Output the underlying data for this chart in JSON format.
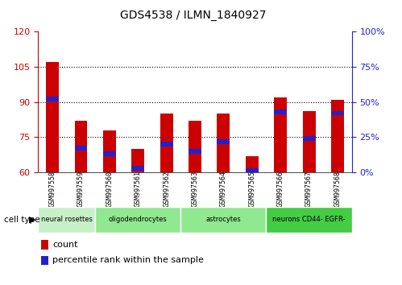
{
  "title": "GDS4538 / ILMN_1840927",
  "samples": [
    "GSM997558",
    "GSM997559",
    "GSM997560",
    "GSM997561",
    "GSM997562",
    "GSM997563",
    "GSM997564",
    "GSM997565",
    "GSM997566",
    "GSM997567",
    "GSM997568"
  ],
  "count_values": [
    107,
    82,
    78,
    70,
    85,
    82,
    85,
    67,
    92,
    86,
    91
  ],
  "percentile_values": [
    52,
    17,
    13,
    3,
    20,
    15,
    22,
    1,
    43,
    24,
    42
  ],
  "ylim_left": [
    60,
    120
  ],
  "ylim_right": [
    0,
    100
  ],
  "yticks_left": [
    60,
    75,
    90,
    105,
    120
  ],
  "yticks_right": [
    0,
    25,
    50,
    75,
    100
  ],
  "cell_type_defs": [
    {
      "label": "neural rosettes",
      "start": 0,
      "end": 2,
      "color": "#c8f0c8"
    },
    {
      "label": "oligodendrocytes",
      "start": 2,
      "end": 5,
      "color": "#90e890"
    },
    {
      "label": "astrocytes",
      "start": 5,
      "end": 8,
      "color": "#90e890"
    },
    {
      "label": "neurons CD44- EGFR-",
      "start": 8,
      "end": 11,
      "color": "#44cc44"
    }
  ],
  "bar_color": "#cc0000",
  "percentile_color": "#2222cc",
  "bar_width": 0.45,
  "axis_color_left": "#cc0000",
  "axis_color_right": "#2222cc",
  "plot_bg": "#ffffff",
  "tick_label_area_color": "#d3d3d3",
  "legend_count_color": "#cc0000",
  "legend_percentile_color": "#2222cc",
  "grid_yticks": [
    75,
    90,
    105
  ]
}
